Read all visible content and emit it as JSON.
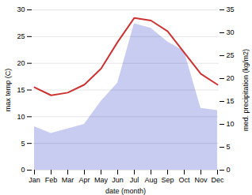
{
  "chart_data": {
    "type": "line",
    "categories": [
      "Jan",
      "Feb",
      "Mar",
      "Apr",
      "May",
      "Jun",
      "Jul",
      "Aug",
      "Sep",
      "Oct",
      "Nov",
      "Dec"
    ],
    "series": [
      {
        "type": "area",
        "axis": "y2",
        "color": "#c8ccf0",
        "values": [
          9.5,
          8.0,
          9.0,
          10.0,
          15.0,
          19.0,
          32.0,
          31.0,
          28.0,
          26.0,
          13.5,
          13.0
        ]
      },
      {
        "type": "line",
        "color": "#cc3333",
        "values": [
          15.5,
          14.0,
          14.5,
          16.0,
          19.0,
          24.0,
          28.5,
          28.0,
          26.0,
          22.0,
          18.0,
          16.0
        ]
      }
    ],
    "xlabel": "date (month)",
    "ylabel": "max temp (C)",
    "y2label": "med. precipitation (kg/m2)",
    "ylim": [
      0,
      30
    ],
    "yticks": [
      0,
      5,
      10,
      15,
      20,
      25,
      30
    ],
    "y2lim": [
      0,
      35
    ],
    "y2ticks": [
      0,
      5,
      10,
      15,
      20,
      25,
      30,
      35
    ],
    "grid": true
  }
}
